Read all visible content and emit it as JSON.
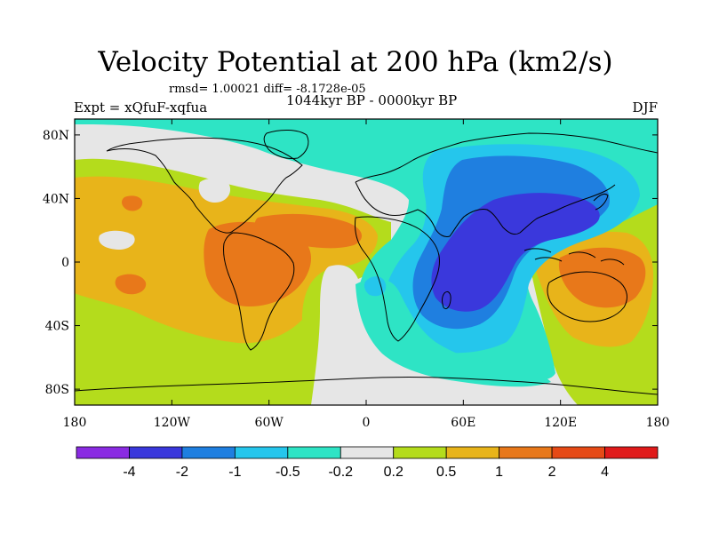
{
  "title": "Velocity Potential at 200 hPa (km2/s)",
  "stats": "rmsd= 1.00021 diff= -8.1728e-05",
  "experiment": "Expt = xQfuF-xqfua",
  "period": "1044kyr BP - 0000kyr BP",
  "season": "DJF",
  "axes": {
    "x_ticks": [
      {
        "lon": -180,
        "label": "180"
      },
      {
        "lon": -120,
        "label": "120W"
      },
      {
        "lon": -60,
        "label": "60W"
      },
      {
        "lon": 0,
        "label": "0"
      },
      {
        "lon": 60,
        "label": "60E"
      },
      {
        "lon": 120,
        "label": "120E"
      },
      {
        "lon": 180,
        "label": "180"
      }
    ],
    "y_ticks": [
      {
        "lat": 80,
        "label": "80N"
      },
      {
        "lat": 40,
        "label": "40N"
      },
      {
        "lat": 0,
        "label": "0"
      },
      {
        "lat": -40,
        "label": "40S"
      },
      {
        "lat": -80,
        "label": "80S"
      }
    ]
  },
  "colorbar": {
    "colors": [
      "#8a2be2",
      "#3a38dc",
      "#1f7fe0",
      "#25c6ec",
      "#2ee4c5",
      "#e6e6e6",
      "#b4dc1c",
      "#e8b41a",
      "#e8781a",
      "#e64a16",
      "#e01a1a"
    ],
    "labels": [
      "-4",
      "-2",
      "-1",
      "-0.5",
      "-0.2",
      "0.2",
      "0.5",
      "1",
      "2",
      "4"
    ]
  },
  "map_colors": {
    "neutral": "#e6e6e6",
    "weak_pos": "#b4dc1c",
    "pos": "#e8b41a",
    "strong_pos": "#e8781a",
    "weak_neg": "#2ee4c5",
    "neg": "#25c6ec",
    "strong_neg": "#1f7fe0",
    "very_strong_neg": "#3a38dc"
  }
}
